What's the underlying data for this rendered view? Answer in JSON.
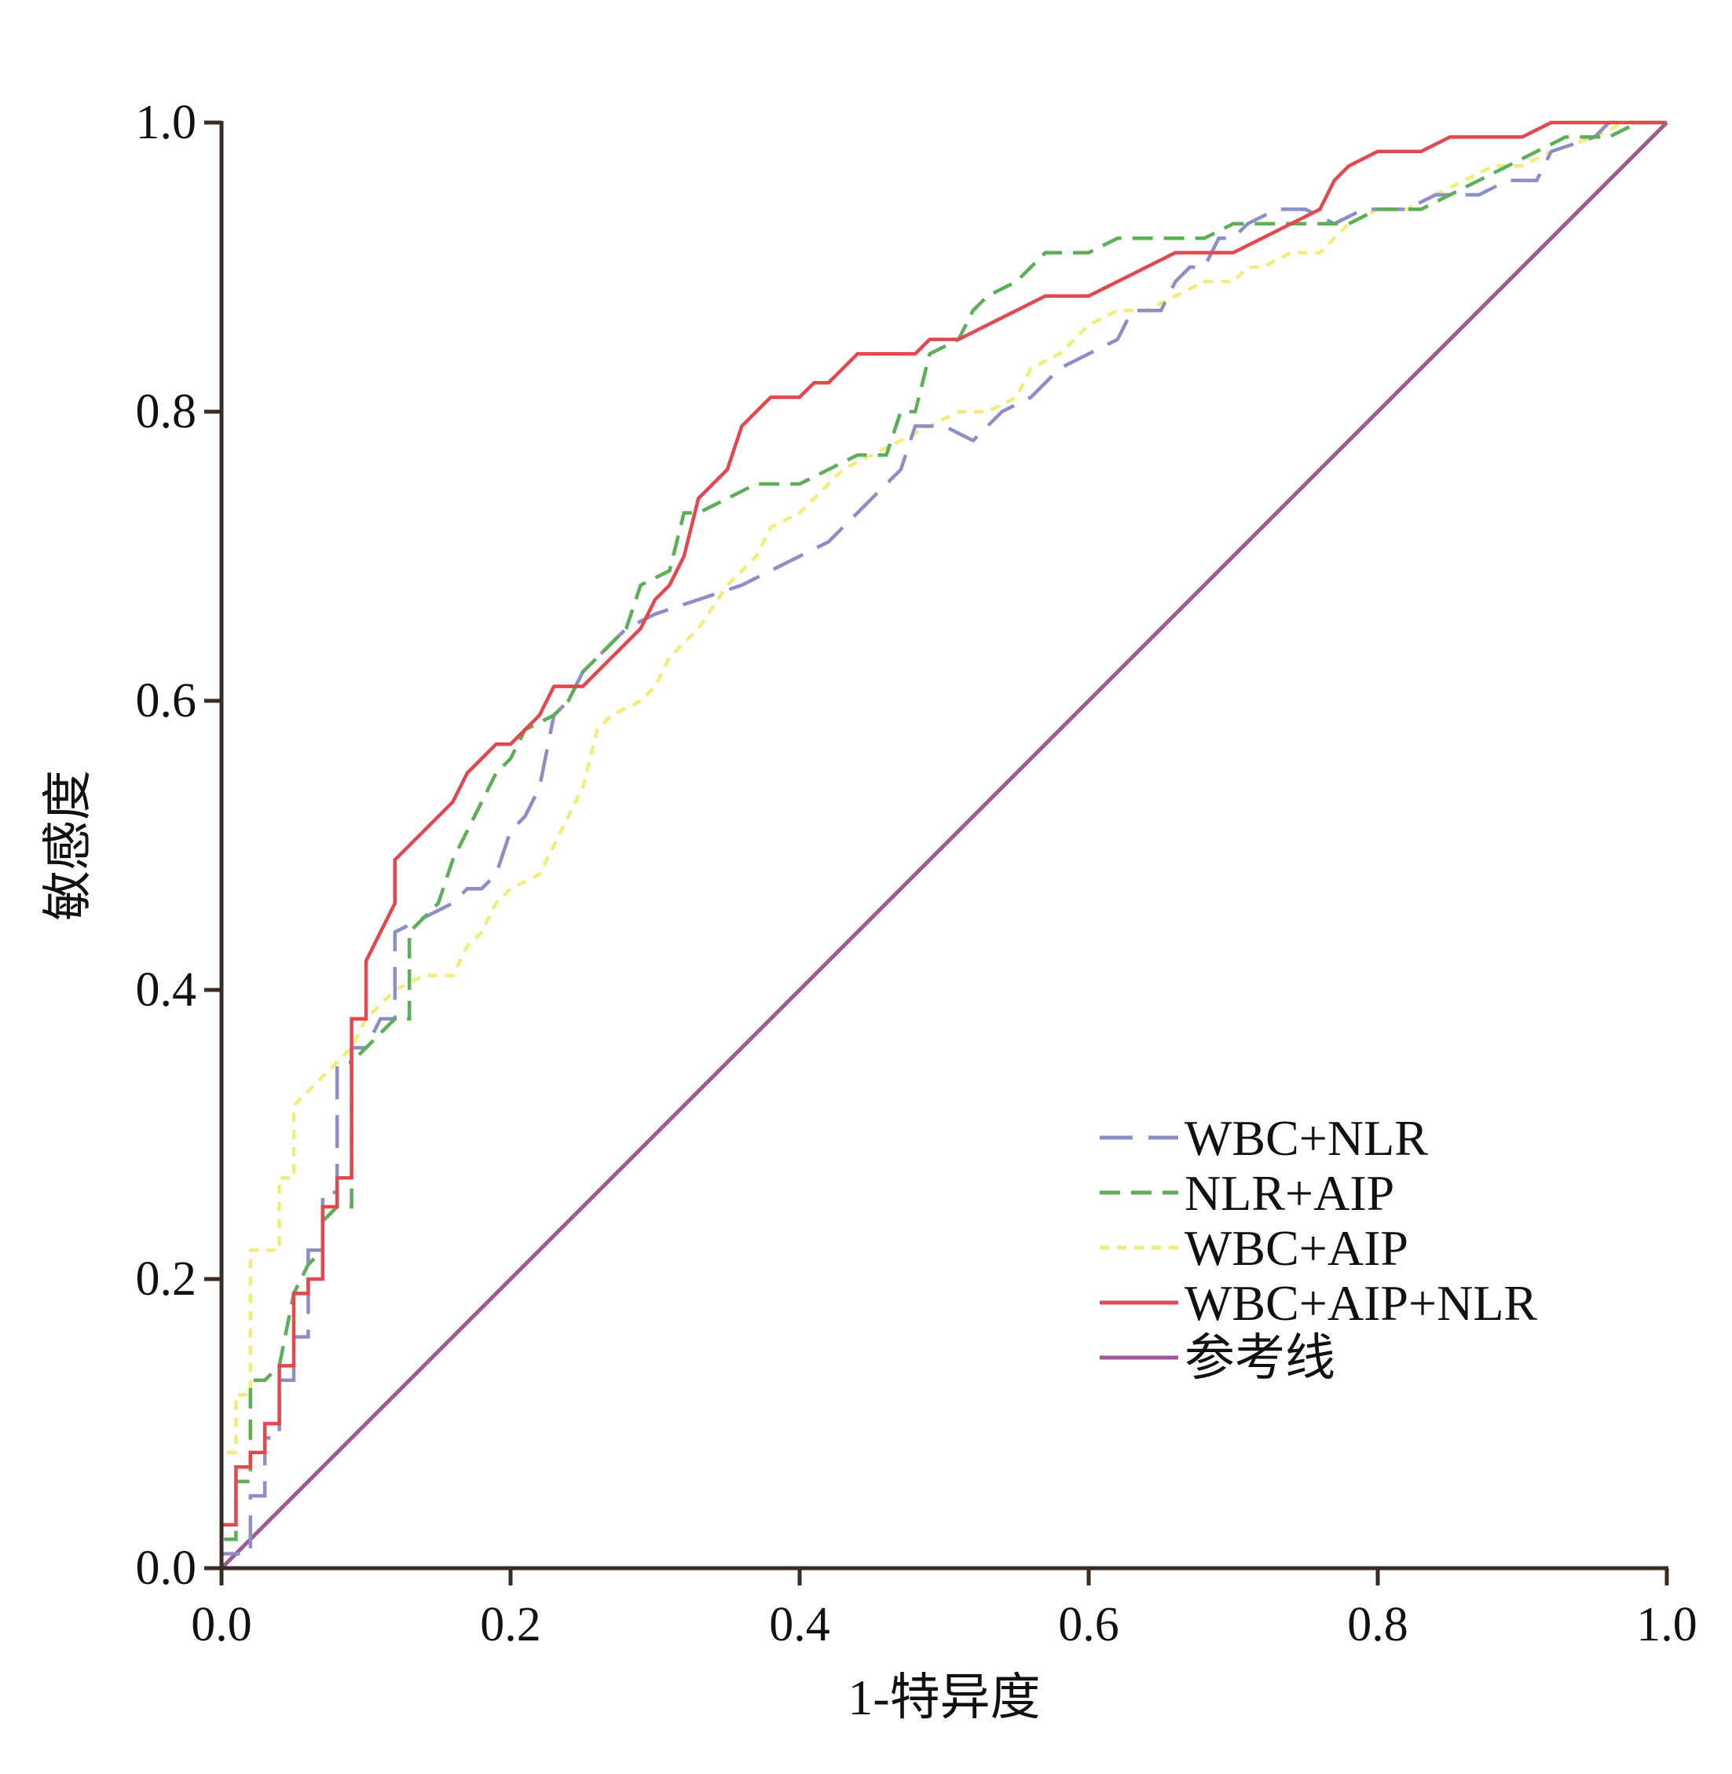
{
  "chart_data": {
    "type": "line",
    "title": "",
    "xlabel": "1-特异度",
    "ylabel": "敏感度",
    "xlim": [
      0,
      1
    ],
    "ylim": [
      0,
      1
    ],
    "x_ticks": [
      "0.0",
      "0.2",
      "0.4",
      "0.6",
      "0.8",
      "1.0"
    ],
    "y_ticks": [
      "0.0",
      "0.2",
      "0.4",
      "0.6",
      "0.8",
      "1.0"
    ],
    "legend_position": "bottom-right",
    "series": [
      {
        "name": "WBC+NLR",
        "color": "#8d8ec6",
        "dash": "long-dash",
        "points": [
          [
            0,
            0
          ],
          [
            0,
            0.01
          ],
          [
            0.02,
            0.01
          ],
          [
            0.02,
            0.05
          ],
          [
            0.03,
            0.05
          ],
          [
            0.03,
            0.09
          ],
          [
            0.04,
            0.09
          ],
          [
            0.04,
            0.13
          ],
          [
            0.05,
            0.13
          ],
          [
            0.05,
            0.16
          ],
          [
            0.06,
            0.16
          ],
          [
            0.06,
            0.22
          ],
          [
            0.07,
            0.22
          ],
          [
            0.07,
            0.26
          ],
          [
            0.08,
            0.26
          ],
          [
            0.08,
            0.35
          ],
          [
            0.09,
            0.35
          ],
          [
            0.09,
            0.36
          ],
          [
            0.1,
            0.36
          ],
          [
            0.11,
            0.38
          ],
          [
            0.12,
            0.38
          ],
          [
            0.12,
            0.44
          ],
          [
            0.14,
            0.45
          ],
          [
            0.16,
            0.46
          ],
          [
            0.17,
            0.47
          ],
          [
            0.18,
            0.47
          ],
          [
            0.19,
            0.48
          ],
          [
            0.2,
            0.51
          ],
          [
            0.21,
            0.52
          ],
          [
            0.22,
            0.54
          ],
          [
            0.23,
            0.59
          ],
          [
            0.24,
            0.6
          ],
          [
            0.25,
            0.62
          ],
          [
            0.26,
            0.63
          ],
          [
            0.27,
            0.64
          ],
          [
            0.28,
            0.65
          ],
          [
            0.3,
            0.66
          ],
          [
            0.33,
            0.67
          ],
          [
            0.36,
            0.68
          ],
          [
            0.38,
            0.69
          ],
          [
            0.4,
            0.7
          ],
          [
            0.42,
            0.71
          ],
          [
            0.44,
            0.73
          ],
          [
            0.46,
            0.75
          ],
          [
            0.47,
            0.76
          ],
          [
            0.48,
            0.79
          ],
          [
            0.5,
            0.79
          ],
          [
            0.52,
            0.78
          ],
          [
            0.54,
            0.8
          ],
          [
            0.56,
            0.81
          ],
          [
            0.58,
            0.83
          ],
          [
            0.6,
            0.84
          ],
          [
            0.62,
            0.85
          ],
          [
            0.63,
            0.87
          ],
          [
            0.65,
            0.87
          ],
          [
            0.66,
            0.89
          ],
          [
            0.67,
            0.9
          ],
          [
            0.68,
            0.9
          ],
          [
            0.69,
            0.92
          ],
          [
            0.7,
            0.92
          ],
          [
            0.71,
            0.93
          ],
          [
            0.73,
            0.94
          ],
          [
            0.75,
            0.94
          ],
          [
            0.77,
            0.93
          ],
          [
            0.79,
            0.94
          ],
          [
            0.82,
            0.94
          ],
          [
            0.84,
            0.95
          ],
          [
            0.87,
            0.95
          ],
          [
            0.89,
            0.96
          ],
          [
            0.91,
            0.96
          ],
          [
            0.92,
            0.98
          ],
          [
            0.95,
            0.99
          ],
          [
            0.96,
            1.0
          ],
          [
            1.0,
            1.0
          ]
        ]
      },
      {
        "name": "NLR+AIP",
        "color": "#5cae57",
        "dash": "dash",
        "points": [
          [
            0,
            0
          ],
          [
            0,
            0.02
          ],
          [
            0.01,
            0.02
          ],
          [
            0.01,
            0.06
          ],
          [
            0.02,
            0.06
          ],
          [
            0.02,
            0.13
          ],
          [
            0.03,
            0.13
          ],
          [
            0.04,
            0.14
          ],
          [
            0.05,
            0.19
          ],
          [
            0.06,
            0.21
          ],
          [
            0.07,
            0.22
          ],
          [
            0.07,
            0.24
          ],
          [
            0.08,
            0.25
          ],
          [
            0.09,
            0.25
          ],
          [
            0.09,
            0.3
          ],
          [
            0.09,
            0.35
          ],
          [
            0.1,
            0.36
          ],
          [
            0.11,
            0.37
          ],
          [
            0.12,
            0.38
          ],
          [
            0.13,
            0.38
          ],
          [
            0.13,
            0.44
          ],
          [
            0.15,
            0.46
          ],
          [
            0.16,
            0.49
          ],
          [
            0.17,
            0.51
          ],
          [
            0.18,
            0.53
          ],
          [
            0.19,
            0.55
          ],
          [
            0.2,
            0.56
          ],
          [
            0.21,
            0.58
          ],
          [
            0.23,
            0.59
          ],
          [
            0.24,
            0.6
          ],
          [
            0.25,
            0.62
          ],
          [
            0.27,
            0.64
          ],
          [
            0.28,
            0.65
          ],
          [
            0.29,
            0.68
          ],
          [
            0.31,
            0.69
          ],
          [
            0.32,
            0.73
          ],
          [
            0.33,
            0.73
          ],
          [
            0.35,
            0.74
          ],
          [
            0.37,
            0.75
          ],
          [
            0.4,
            0.75
          ],
          [
            0.42,
            0.76
          ],
          [
            0.44,
            0.77
          ],
          [
            0.46,
            0.77
          ],
          [
            0.47,
            0.8
          ],
          [
            0.48,
            0.8
          ],
          [
            0.49,
            0.84
          ],
          [
            0.51,
            0.85
          ],
          [
            0.52,
            0.87
          ],
          [
            0.53,
            0.88
          ],
          [
            0.55,
            0.89
          ],
          [
            0.57,
            0.91
          ],
          [
            0.6,
            0.91
          ],
          [
            0.62,
            0.92
          ],
          [
            0.66,
            0.92
          ],
          [
            0.68,
            0.92
          ],
          [
            0.7,
            0.93
          ],
          [
            0.72,
            0.93
          ],
          [
            0.74,
            0.93
          ],
          [
            0.76,
            0.93
          ],
          [
            0.78,
            0.93
          ],
          [
            0.8,
            0.94
          ],
          [
            0.83,
            0.94
          ],
          [
            0.85,
            0.95
          ],
          [
            0.87,
            0.96
          ],
          [
            0.89,
            0.97
          ],
          [
            0.91,
            0.98
          ],
          [
            0.93,
            0.99
          ],
          [
            0.96,
            0.99
          ],
          [
            0.98,
            1.0
          ],
          [
            1.0,
            1.0
          ]
        ]
      },
      {
        "name": "WBC+AIP",
        "color": "#f2ed7a",
        "dash": "dot",
        "points": [
          [
            0,
            0
          ],
          [
            0,
            0.08
          ],
          [
            0.01,
            0.08
          ],
          [
            0.01,
            0.12
          ],
          [
            0.02,
            0.12
          ],
          [
            0.02,
            0.22
          ],
          [
            0.03,
            0.22
          ],
          [
            0.04,
            0.22
          ],
          [
            0.04,
            0.27
          ],
          [
            0.05,
            0.27
          ],
          [
            0.05,
            0.32
          ],
          [
            0.06,
            0.33
          ],
          [
            0.07,
            0.34
          ],
          [
            0.08,
            0.35
          ],
          [
            0.09,
            0.36
          ],
          [
            0.1,
            0.38
          ],
          [
            0.12,
            0.4
          ],
          [
            0.14,
            0.41
          ],
          [
            0.16,
            0.41
          ],
          [
            0.17,
            0.43
          ],
          [
            0.18,
            0.44
          ],
          [
            0.19,
            0.46
          ],
          [
            0.2,
            0.47
          ],
          [
            0.22,
            0.48
          ],
          [
            0.23,
            0.5
          ],
          [
            0.24,
            0.52
          ],
          [
            0.25,
            0.54
          ],
          [
            0.26,
            0.58
          ],
          [
            0.27,
            0.59
          ],
          [
            0.29,
            0.6
          ],
          [
            0.3,
            0.61
          ],
          [
            0.31,
            0.63
          ],
          [
            0.32,
            0.64
          ],
          [
            0.33,
            0.65
          ],
          [
            0.35,
            0.68
          ],
          [
            0.37,
            0.7
          ],
          [
            0.38,
            0.72
          ],
          [
            0.4,
            0.73
          ],
          [
            0.42,
            0.75
          ],
          [
            0.43,
            0.76
          ],
          [
            0.45,
            0.77
          ],
          [
            0.47,
            0.78
          ],
          [
            0.49,
            0.79
          ],
          [
            0.51,
            0.8
          ],
          [
            0.53,
            0.8
          ],
          [
            0.55,
            0.81
          ],
          [
            0.56,
            0.83
          ],
          [
            0.58,
            0.84
          ],
          [
            0.59,
            0.85
          ],
          [
            0.6,
            0.86
          ],
          [
            0.62,
            0.87
          ],
          [
            0.64,
            0.87
          ],
          [
            0.66,
            0.88
          ],
          [
            0.68,
            0.89
          ],
          [
            0.7,
            0.89
          ],
          [
            0.71,
            0.9
          ],
          [
            0.72,
            0.9
          ],
          [
            0.74,
            0.91
          ],
          [
            0.76,
            0.91
          ],
          [
            0.77,
            0.92
          ],
          [
            0.78,
            0.93
          ],
          [
            0.8,
            0.94
          ],
          [
            0.82,
            0.94
          ],
          [
            0.84,
            0.95
          ],
          [
            0.86,
            0.96
          ],
          [
            0.88,
            0.97
          ],
          [
            0.9,
            0.97
          ],
          [
            0.92,
            0.98
          ],
          [
            0.95,
            0.99
          ],
          [
            0.97,
            1.0
          ],
          [
            1.0,
            1.0
          ]
        ]
      },
      {
        "name": "WBC+AIP+NLR",
        "color": "#e3484f",
        "dash": "solid",
        "points": [
          [
            0,
            0
          ],
          [
            0,
            0.03
          ],
          [
            0.01,
            0.03
          ],
          [
            0.01,
            0.07
          ],
          [
            0.02,
            0.07
          ],
          [
            0.02,
            0.08
          ],
          [
            0.03,
            0.08
          ],
          [
            0.03,
            0.1
          ],
          [
            0.04,
            0.1
          ],
          [
            0.04,
            0.14
          ],
          [
            0.05,
            0.14
          ],
          [
            0.05,
            0.19
          ],
          [
            0.06,
            0.19
          ],
          [
            0.06,
            0.2
          ],
          [
            0.07,
            0.2
          ],
          [
            0.07,
            0.25
          ],
          [
            0.08,
            0.25
          ],
          [
            0.08,
            0.27
          ],
          [
            0.09,
            0.27
          ],
          [
            0.09,
            0.38
          ],
          [
            0.1,
            0.38
          ],
          [
            0.1,
            0.42
          ],
          [
            0.11,
            0.44
          ],
          [
            0.12,
            0.46
          ],
          [
            0.12,
            0.49
          ],
          [
            0.13,
            0.5
          ],
          [
            0.14,
            0.51
          ],
          [
            0.15,
            0.52
          ],
          [
            0.16,
            0.53
          ],
          [
            0.17,
            0.55
          ],
          [
            0.18,
            0.56
          ],
          [
            0.19,
            0.57
          ],
          [
            0.2,
            0.57
          ],
          [
            0.21,
            0.58
          ],
          [
            0.22,
            0.59
          ],
          [
            0.23,
            0.61
          ],
          [
            0.25,
            0.61
          ],
          [
            0.27,
            0.63
          ],
          [
            0.28,
            0.64
          ],
          [
            0.29,
            0.65
          ],
          [
            0.3,
            0.67
          ],
          [
            0.31,
            0.68
          ],
          [
            0.32,
            0.7
          ],
          [
            0.33,
            0.74
          ],
          [
            0.34,
            0.75
          ],
          [
            0.35,
            0.76
          ],
          [
            0.36,
            0.79
          ],
          [
            0.37,
            0.8
          ],
          [
            0.38,
            0.81
          ],
          [
            0.4,
            0.81
          ],
          [
            0.41,
            0.82
          ],
          [
            0.42,
            0.82
          ],
          [
            0.43,
            0.83
          ],
          [
            0.44,
            0.84
          ],
          [
            0.46,
            0.84
          ],
          [
            0.48,
            0.84
          ],
          [
            0.49,
            0.85
          ],
          [
            0.51,
            0.85
          ],
          [
            0.53,
            0.86
          ],
          [
            0.55,
            0.87
          ],
          [
            0.57,
            0.88
          ],
          [
            0.6,
            0.88
          ],
          [
            0.62,
            0.89
          ],
          [
            0.64,
            0.9
          ],
          [
            0.66,
            0.91
          ],
          [
            0.68,
            0.91
          ],
          [
            0.7,
            0.91
          ],
          [
            0.72,
            0.92
          ],
          [
            0.74,
            0.93
          ],
          [
            0.76,
            0.94
          ],
          [
            0.77,
            0.96
          ],
          [
            0.78,
            0.97
          ],
          [
            0.8,
            0.98
          ],
          [
            0.83,
            0.98
          ],
          [
            0.85,
            0.99
          ],
          [
            0.88,
            0.99
          ],
          [
            0.9,
            0.99
          ],
          [
            0.92,
            1.0
          ],
          [
            0.95,
            1.0
          ],
          [
            1.0,
            1.0
          ]
        ]
      },
      {
        "name": "参考线",
        "color": "#9d5a98",
        "dash": "solid",
        "points": [
          [
            0,
            0
          ],
          [
            1,
            1
          ]
        ]
      }
    ]
  }
}
